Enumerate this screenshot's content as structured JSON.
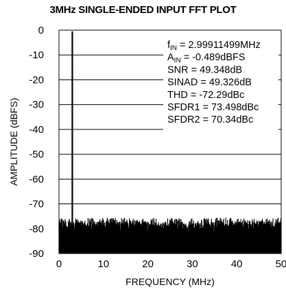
{
  "chart_data": {
    "type": "line",
    "title": "3MHz SINGLE-ENDED INPUT FFT PLOT",
    "xlabel": "FREQUENCY (MHz)",
    "ylabel": "AMPLITUDE (dBFS)",
    "xlim": [
      0,
      50
    ],
    "ylim": [
      -90,
      0
    ],
    "xticks": [
      0,
      10,
      20,
      30,
      40,
      50
    ],
    "yticks": [
      0,
      -10,
      -20,
      -30,
      -40,
      -50,
      -60,
      -70,
      -80,
      -90
    ],
    "grid": true,
    "legend": "none",
    "fundamental": {
      "x": 3.0,
      "y": -0.489
    },
    "noise_floor_dBFS": [
      -90,
      -76
    ],
    "annotations": [
      {
        "prefix": "f",
        "sub": "IN",
        "text": " = 2.99911499MHz"
      },
      {
        "prefix": "A",
        "sub": "IN",
        "text": " = -0.489dBFS"
      },
      {
        "prefix": "",
        "sub": "",
        "text": "SNR = 49.348dB"
      },
      {
        "prefix": "",
        "sub": "",
        "text": "SINAD = 49.326dB"
      },
      {
        "prefix": "",
        "sub": "",
        "text": "THD = -72.29dBc"
      },
      {
        "prefix": "",
        "sub": "",
        "text": "SFDR1 = 73.498dBc"
      },
      {
        "prefix": "",
        "sub": "",
        "text": "SFDR2 = 70.34dBc"
      }
    ],
    "colors": {
      "trace": "#000000",
      "grid": "#000000",
      "background": "#ffffff"
    }
  }
}
